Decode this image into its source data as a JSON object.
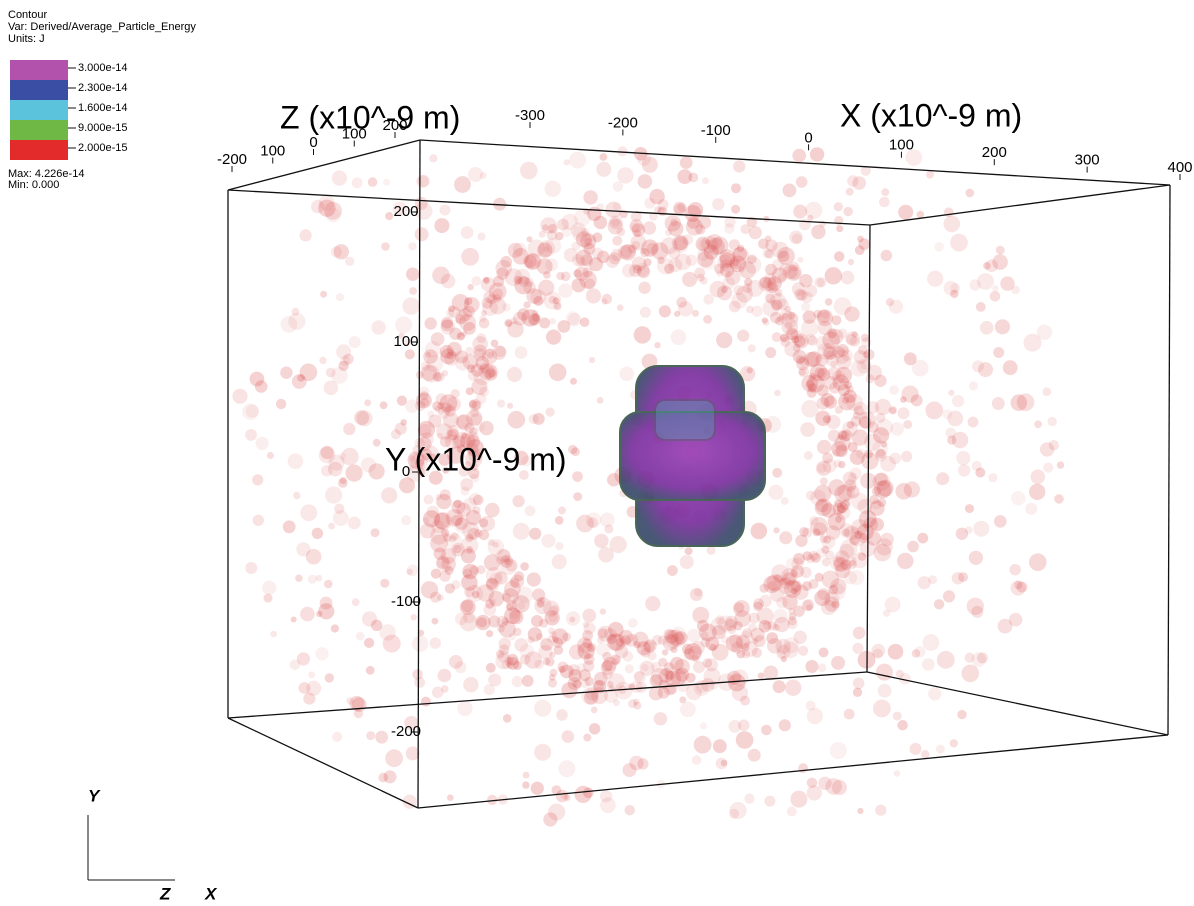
{
  "legend": {
    "title": "Contour",
    "var": "Var: Derived/Average_Particle_Energy",
    "units": "Units: J",
    "entries": [
      {
        "label": "3.000e-14",
        "color": "#b352ad"
      },
      {
        "label": "2.300e-14",
        "color": "#3a4fa3"
      },
      {
        "label": "1.600e-14",
        "color": "#5bc4dc"
      },
      {
        "label": "9.000e-15",
        "color": "#6fb845"
      },
      {
        "label": "2.000e-15",
        "color": "#e32b2b"
      }
    ],
    "max": "Max:  4.226e-14",
    "min": "Min:  0.000"
  },
  "axes": {
    "x": {
      "title": "X (x10^-9 m)",
      "ticks": [
        "-300",
        "-200",
        "-100",
        "0",
        "100",
        "200",
        "300",
        "400"
      ]
    },
    "z": {
      "title": "Z (x10^-9 m)",
      "ticks": [
        "-200",
        "100",
        "0",
        "100",
        "200"
      ]
    },
    "y": {
      "title": "Y (x10^-9 m)",
      "ticks": [
        "200",
        "100",
        "0",
        "-100",
        "-200"
      ]
    }
  },
  "triad": {
    "y": "Y",
    "z": "Z",
    "x": "X"
  }
}
